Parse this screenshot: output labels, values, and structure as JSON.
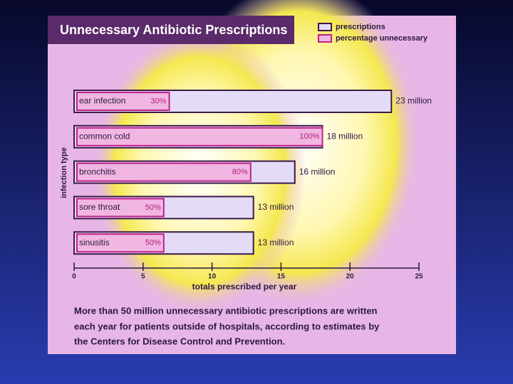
{
  "chart_data": {
    "type": "bar",
    "orientation": "horizontal",
    "title": "Unnecessary Antibiotic Prescriptions",
    "x_label": "totals prescribed per year",
    "y_label": "infection type",
    "categories": [
      "ear infection",
      "common cold",
      "bronchitis",
      "sore throat",
      "sinusitis"
    ],
    "series": [
      {
        "name": "prescriptions",
        "color": "#e4dcf6",
        "values": [
          23,
          18,
          16,
          13,
          13
        ],
        "value_labels": [
          "23 million",
          "18 million",
          "16 million",
          "13 million",
          "13 million"
        ]
      },
      {
        "name": "percentage unnecessary",
        "color": "#f2b6e2",
        "values": [
          30,
          100,
          80,
          50,
          50
        ],
        "value_labels": [
          "30%",
          "100%",
          "80%",
          "50%",
          "50%"
        ]
      }
    ],
    "xlim": [
      0,
      25
    ],
    "xticks": [
      0,
      5,
      10,
      15,
      20,
      25
    ],
    "legend": "top-right",
    "caption": [
      "More than 50 million unnecessary antibiotic prescriptions are written",
      "each year for patients outside of hospitals, according to estimates by",
      "the Centers for Disease Control and Prevention."
    ]
  }
}
